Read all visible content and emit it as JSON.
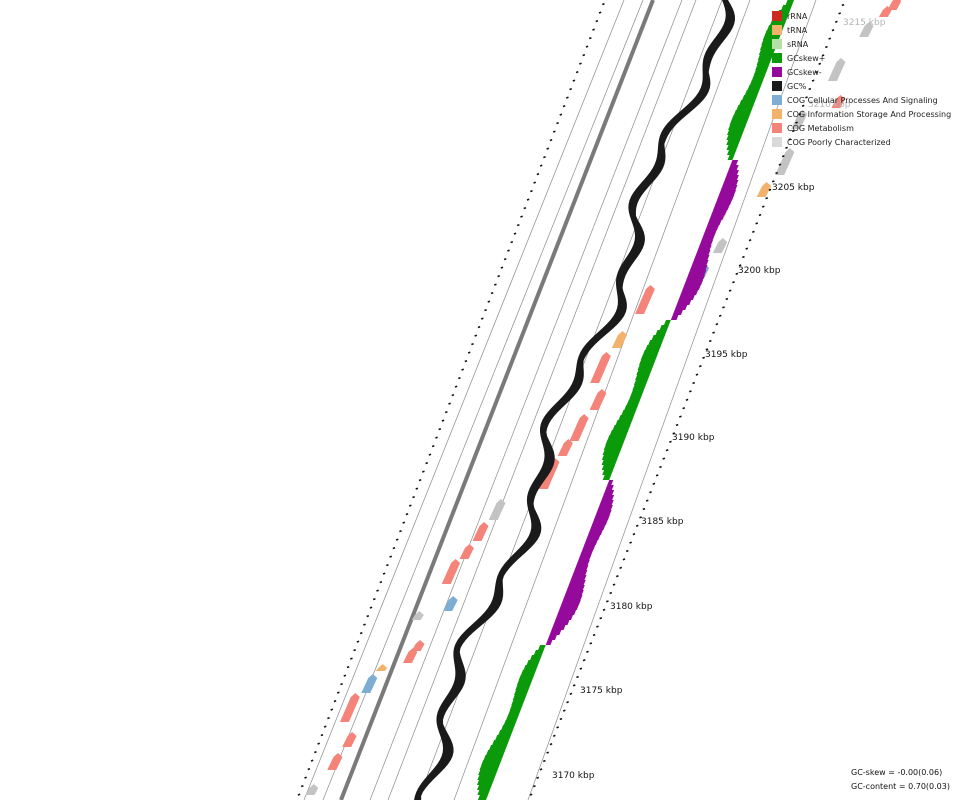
{
  "map": {
    "scale_labels": [
      "3170 kbp",
      "3175 kbp",
      "3180 kbp",
      "3185 kbp",
      "3190 kbp",
      "3195 kbp",
      "3200 kbp",
      "3205 kbp",
      "3210 kbp",
      "3215 kbp"
    ],
    "colors": {
      "backbone": "#7a7a7a",
      "ring_line": "#8c8c8c",
      "gc_content": "#1a1a1a",
      "gc_skew_pos": "#0a9a0a",
      "gc_skew_neg": "#950a9a",
      "tick": "#111111"
    }
  },
  "legend": {
    "items": [
      {
        "label": "rRNA",
        "color": "#cc2a1f"
      },
      {
        "label": "tRNA",
        "color": "#f2b26b"
      },
      {
        "label": "sRNA",
        "color": "#b5e0a6"
      },
      {
        "label": "GCskew+",
        "color": "#0a9a0a"
      },
      {
        "label": "GCskew-",
        "color": "#950a9a"
      },
      {
        "label": "GC%",
        "color": "#1a1a1a"
      },
      {
        "label": "COG Cellular Processes And Signaling",
        "color": "#7eadd3"
      },
      {
        "label": "COG Information Storage And Processing",
        "color": "#f2b26b"
      },
      {
        "label": "COG Metabolism",
        "color": "#f4847a"
      },
      {
        "label": "COG Poorly Characterized",
        "color": "#d9d9d9"
      }
    ]
  },
  "stats": {
    "gc_skew": "GC-skew = -0.00(0.06)",
    "gc_content": "GC-content = 0.70(0.03)"
  }
}
